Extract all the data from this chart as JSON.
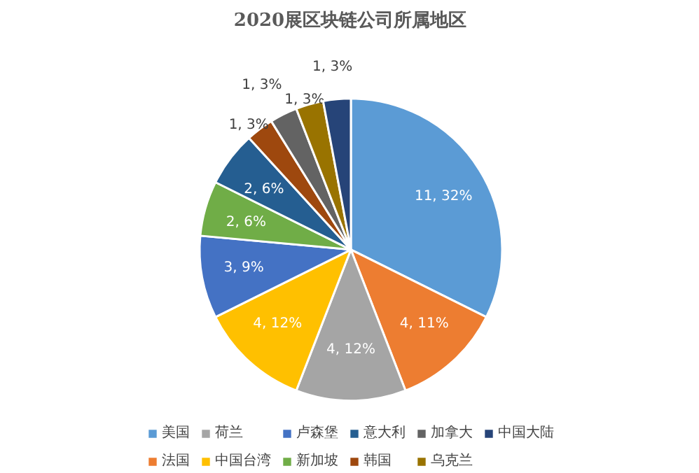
{
  "chart_data": {
    "type": "pie",
    "title": "2020展区块链公司所属地区",
    "categories": [
      "美国",
      "法国",
      "荷兰",
      "中国台湾",
      "卢森堡",
      "新加坡",
      "意大利",
      "韩国",
      "加拿大",
      "乌克兰",
      "中国大陆"
    ],
    "values": [
      11,
      4,
      4,
      4,
      3,
      2,
      2,
      1,
      1,
      1,
      1
    ],
    "value_labels": [
      "11, 32%",
      "4, 11%",
      "4, 12%",
      "4, 12%",
      "3, 9%",
      "2, 6%",
      "2, 6%",
      "1, 3%",
      "1, 3%",
      "1, 3%",
      "1, 3%"
    ],
    "colors": [
      "#5b9bd5",
      "#ed7d31",
      "#a5a5a5",
      "#ffc000",
      "#4472c4",
      "#70ad47",
      "#255e91",
      "#9e480e",
      "#636363",
      "#997300",
      "#264478"
    ],
    "legend": "bottom"
  }
}
